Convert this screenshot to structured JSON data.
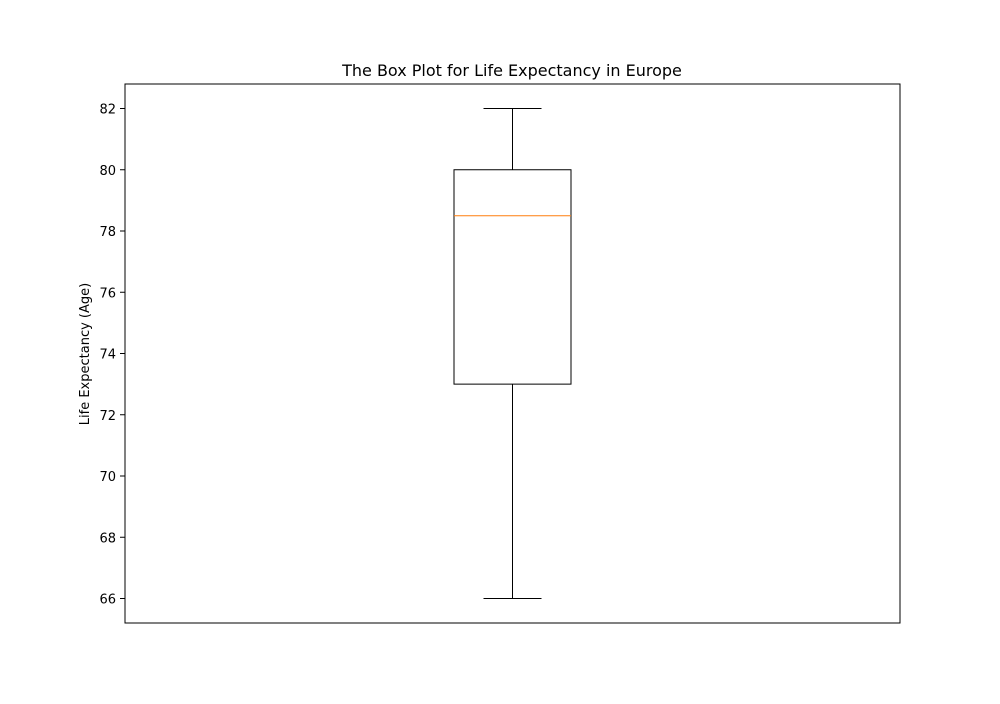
{
  "chart_data": {
    "type": "box",
    "title": "The Box Plot for Life Expectancy in Europe",
    "xlabel": "",
    "ylabel": "Life Expectancy (Age)",
    "ylim": [
      65.2,
      82.8
    ],
    "yticks": [
      66,
      68,
      70,
      72,
      74,
      76,
      78,
      80,
      82
    ],
    "grid": false,
    "boxes": [
      {
        "min": 66,
        "q1": 73,
        "median": 78.5,
        "q3": 80,
        "max": 82
      }
    ],
    "colors": {
      "box": "#000000",
      "median": "#ff7f0e",
      "axes": "#000000"
    }
  }
}
